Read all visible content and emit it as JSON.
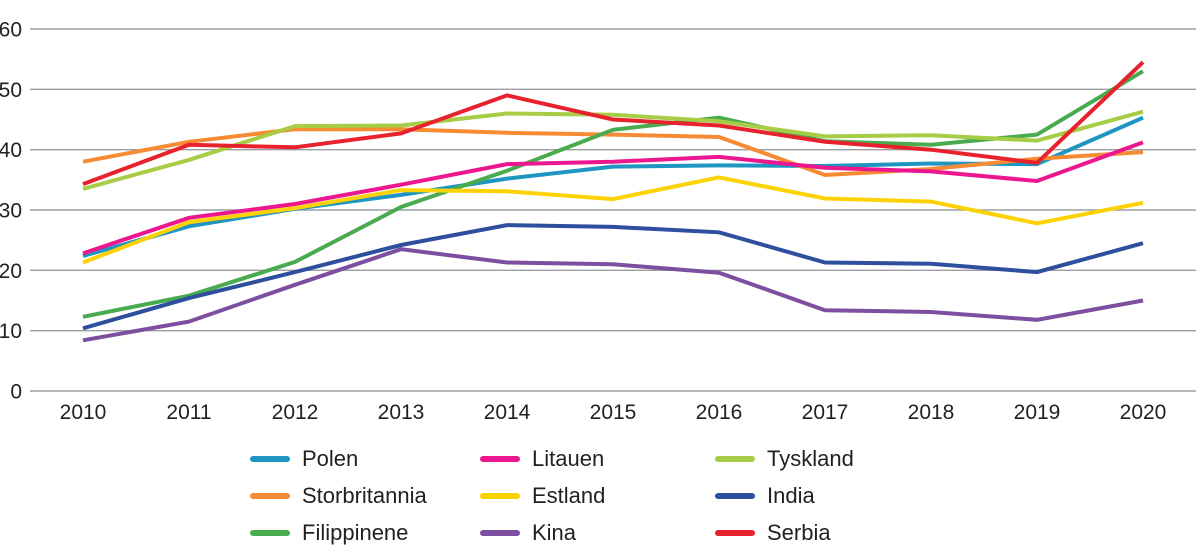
{
  "chart_data": {
    "type": "line",
    "title": "",
    "xlabel": "",
    "ylabel": "",
    "x_categories": [
      "2010",
      "2011",
      "2012",
      "2013",
      "2014",
      "2015",
      "2016",
      "2017",
      "2018",
      "2019",
      "2020"
    ],
    "y_axis": {
      "min": 0,
      "max": 60,
      "tick_interval": 10,
      "ticks": [
        "0",
        "10",
        "20",
        "30",
        "40",
        "50",
        "60"
      ]
    },
    "grid": true,
    "legend_position": "bottom",
    "series": [
      {
        "name": "Polen",
        "color": "#1f95c1",
        "values": [
          22.4,
          27.3,
          30.2,
          32.5,
          35.2,
          37.2,
          37.4,
          37.3,
          37.7,
          37.6,
          45.3
        ]
      },
      {
        "name": "Storbritannia",
        "color": "#f68b33",
        "values": [
          38.0,
          41.3,
          43.4,
          43.4,
          42.8,
          42.5,
          42.1,
          35.8,
          36.8,
          38.5,
          39.6
        ]
      },
      {
        "name": "Filippinene",
        "color": "#4aaa4e",
        "values": [
          12.3,
          15.8,
          21.4,
          30.5,
          36.5,
          43.3,
          45.3,
          41.4,
          40.8,
          42.5,
          53.0
        ]
      },
      {
        "name": "Litauen",
        "color": "#ec168f",
        "values": [
          22.8,
          28.7,
          31.0,
          34.2,
          37.6,
          38.0,
          38.8,
          37.0,
          36.4,
          34.8,
          41.2
        ]
      },
      {
        "name": "Estland",
        "color": "#fdd205",
        "values": [
          21.3,
          28.0,
          30.3,
          33.3,
          33.1,
          31.8,
          35.4,
          31.9,
          31.4,
          27.8,
          31.2
        ]
      },
      {
        "name": "Kina",
        "color": "#7c4fa0",
        "values": [
          8.4,
          11.5,
          17.6,
          23.5,
          21.3,
          21.0,
          19.6,
          13.4,
          13.1,
          11.8,
          15.0
        ]
      },
      {
        "name": "Tyskland",
        "color": "#a7cc45",
        "values": [
          33.5,
          38.3,
          43.9,
          44.0,
          46.0,
          45.8,
          44.7,
          42.2,
          42.4,
          41.5,
          46.3
        ]
      },
      {
        "name": "India",
        "color": "#2e4f9e",
        "values": [
          10.4,
          15.4,
          19.7,
          24.2,
          27.5,
          27.2,
          26.3,
          21.3,
          21.1,
          19.7,
          24.5
        ]
      },
      {
        "name": "Serbia",
        "color": "#e8222d",
        "values": [
          34.3,
          40.8,
          40.4,
          42.7,
          49.0,
          45.0,
          44.0,
          41.3,
          40.0,
          37.8,
          54.5
        ]
      }
    ],
    "legend_columns": [
      [
        "Polen",
        "Storbritannia",
        "Filippinene"
      ],
      [
        "Litauen",
        "Estland",
        "Kina"
      ],
      [
        "Tyskland",
        "India",
        "Serbia"
      ]
    ]
  },
  "colors": {
    "background": "#ffffff",
    "gridline": "#9b9da0",
    "axis_text": "#231f20"
  }
}
